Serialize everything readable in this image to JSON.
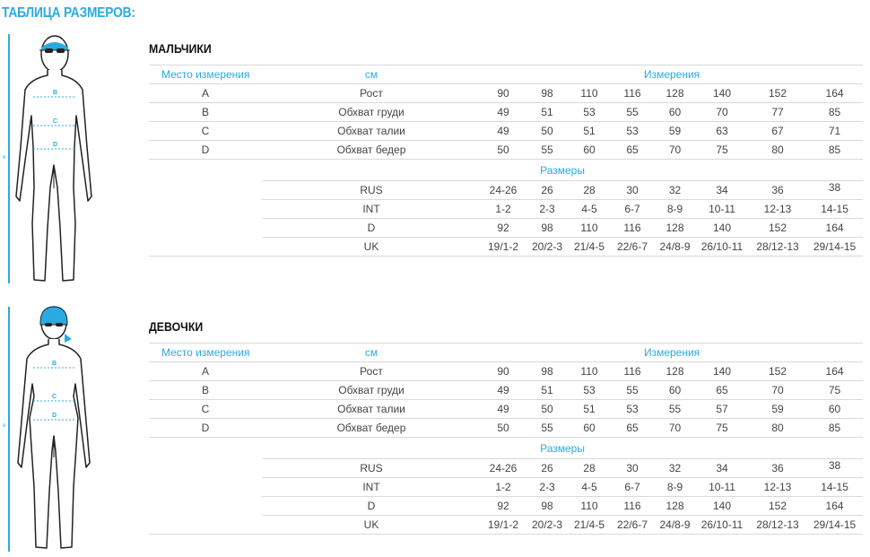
{
  "page_title": "ТАБЛИЦА РАЗМЕРОВ:",
  "sections": [
    {
      "title": "МАЛЬЧИКИ",
      "header": {
        "place": "Место измерения",
        "unit": "см",
        "measurements": "Измерения"
      },
      "rows": [
        {
          "code": "A",
          "name": "Рост",
          "values": [
            "90",
            "98",
            "110",
            "116",
            "128",
            "140",
            "152",
            "164"
          ]
        },
        {
          "code": "B",
          "name": "Обхват груди",
          "values": [
            "49",
            "51",
            "53",
            "55",
            "60",
            "70",
            "77",
            "85"
          ]
        },
        {
          "code": "C",
          "name": "Обхват талии",
          "values": [
            "49",
            "50",
            "51",
            "53",
            "59",
            "63",
            "67",
            "71"
          ]
        },
        {
          "code": "D",
          "name": "Обхват бедер",
          "values": [
            "50",
            "55",
            "60",
            "65",
            "70",
            "75",
            "80",
            "85"
          ]
        }
      ],
      "sizes_label": "Размеры",
      "size_rows": [
        {
          "system": "RUS",
          "values": [
            "24-26",
            "26",
            "28",
            "30",
            "32",
            "34",
            "36",
            "38"
          ]
        },
        {
          "system": "INT",
          "values": [
            "1-2",
            "2-3",
            "4-5",
            "6-7",
            "8-9",
            "10-11",
            "12-13",
            "14-15"
          ]
        },
        {
          "system": "D",
          "values": [
            "92",
            "98",
            "110",
            "116",
            "128",
            "140",
            "152",
            "164"
          ]
        },
        {
          "system": "UK",
          "values": [
            "19/1-2",
            "20/2-3",
            "21/4-5",
            "22/6-7",
            "24/8-9",
            "26/10-11",
            "28/12-13",
            "29/14-15"
          ]
        }
      ]
    },
    {
      "title": "ДЕВОЧКИ",
      "header": {
        "place": "Место измерения",
        "unit": "см",
        "measurements": "Измерения"
      },
      "rows": [
        {
          "code": "A",
          "name": "Рост",
          "values": [
            "90",
            "98",
            "110",
            "116",
            "128",
            "140",
            "152",
            "164"
          ]
        },
        {
          "code": "B",
          "name": "Обхват груди",
          "values": [
            "49",
            "51",
            "53",
            "55",
            "60",
            "65",
            "70",
            "75"
          ]
        },
        {
          "code": "C",
          "name": "Обхват талии",
          "values": [
            "49",
            "50",
            "51",
            "53",
            "55",
            "57",
            "59",
            "60"
          ]
        },
        {
          "code": "D",
          "name": "Обхват бедер",
          "values": [
            "50",
            "55",
            "60",
            "65",
            "70",
            "75",
            "80",
            "85"
          ]
        }
      ],
      "sizes_label": "Размеры",
      "size_rows": [
        {
          "system": "RUS",
          "values": [
            "24-26",
            "26",
            "28",
            "30",
            "32",
            "34",
            "36",
            "38"
          ]
        },
        {
          "system": "INT",
          "values": [
            "1-2",
            "2-3",
            "4-5",
            "6-7",
            "8-9",
            "10-11",
            "12-13",
            "14-15"
          ]
        },
        {
          "system": "D",
          "values": [
            "92",
            "98",
            "110",
            "116",
            "128",
            "140",
            "152",
            "164"
          ]
        },
        {
          "system": "UK",
          "values": [
            "19/1-2",
            "20/2-3",
            "21/4-5",
            "22/6-7",
            "24/8-9",
            "26/10-11",
            "28/12-13",
            "29/14-15"
          ]
        }
      ]
    }
  ],
  "figures": {
    "boy": {
      "markers": [
        "B",
        "C",
        "D"
      ],
      "side_marker": "A"
    },
    "girl": {
      "markers": [
        "B",
        "C",
        "D"
      ],
      "side_marker": "A"
    }
  },
  "colors": {
    "accent": "#29abe2",
    "text": "#444444",
    "rule": "#d9d9d9"
  }
}
